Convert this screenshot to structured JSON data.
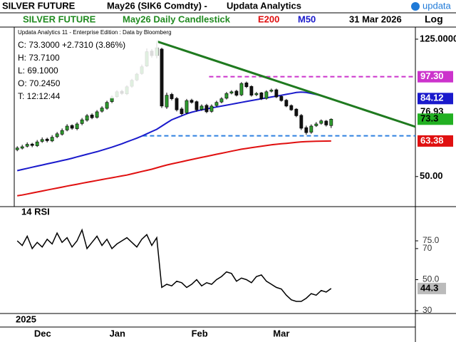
{
  "header": {
    "instrument": "SILVER FUTURE",
    "contract": "May26 (SIK6 Comdty) -",
    "vendor": "Updata Analytics",
    "logo": "updata"
  },
  "chart_data": {
    "type": "candlestick",
    "title": "SILVER FUTURE",
    "subtitle": "May26 Daily Candlestick",
    "date": "31 Mar 2026",
    "scale_label": "Log",
    "info": [
      "Updata Analytics 11 - Enterprise Edition : Data by Bloomberg",
      "C: 73.3000  +2.7310 (3.86%)",
      "H: 73.7100",
      "L: 69.1000",
      "O: 70.2450",
      "T: 12:12:44"
    ],
    "log_scale": true,
    "up_color": "#2e9a2e",
    "down_color": "#111111",
    "xlim": [
      -0.6,
      79.9
    ],
    "ylim": [
      41.3,
      135.5
    ],
    "yticks": [
      {
        "value": 125,
        "label": "125.0000"
      },
      {
        "value": 50,
        "label": "50.00"
      }
    ],
    "year_label": "2025",
    "xticks": [
      {
        "value": 5.1,
        "label": "Dec"
      },
      {
        "value": 20.1,
        "label": "Jan"
      },
      {
        "value": 36.6,
        "label": "Feb"
      },
      {
        "value": 53,
        "label": "Mar"
      }
    ],
    "candles": {
      "open": [
        59.8,
        60.4,
        61.2,
        62.1,
        61.4,
        63.2,
        64.2,
        63.4,
        65.2,
        66.3,
        68.2,
        70.3,
        68.8,
        71.2,
        72.8,
        75.4,
        74.2,
        77.3,
        78.8,
        82.4,
        85.2,
        88.3,
        86.8,
        91.3,
        95.2,
        99.4,
        104.5,
        115.5,
        112,
        117,
        79.5,
        86.5,
        84.2,
        78.5,
        76.5,
        83.2,
        82.4,
        78.2,
        80.4,
        77.2,
        80.3,
        82.2,
        84.3,
        87.2,
        88.4,
        86.2,
        93.4,
        91.2,
        86.3,
        87.4,
        84.2,
        88.3,
        89.2,
        85.4,
        83.2,
        80.3,
        78.4,
        75.2,
        69.3,
        67.2,
        70.2,
        71.3,
        72.4,
        70.245
      ],
      "high": [
        61.2,
        61.8,
        62.8,
        62.6,
        63.8,
        64.9,
        64.8,
        65.9,
        67.3,
        68.9,
        70.9,
        70.8,
        71.8,
        73.9,
        75.9,
        76.2,
        77.9,
        79.9,
        82.9,
        85.9,
        88.9,
        89.2,
        91.9,
        95.9,
        99.9,
        105.5,
        117.5,
        117,
        122,
        118,
        87.5,
        87.4,
        85,
        79.4,
        83.9,
        84,
        83,
        80.9,
        81.2,
        80.9,
        82.9,
        84.9,
        87.9,
        88.9,
        89.2,
        93.9,
        94.2,
        91.9,
        87.9,
        87.9,
        88.9,
        89.9,
        89.9,
        85.9,
        83.9,
        80.9,
        78.9,
        75.9,
        70.2,
        70.8,
        71.9,
        73.2,
        72.9,
        73.71
      ],
      "low": [
        59.2,
        59.9,
        60.7,
        60.8,
        60.9,
        62.6,
        62.8,
        62.9,
        64.6,
        65.7,
        67.6,
        68.3,
        68.1,
        70.4,
        72.1,
        73.3,
        73.6,
        76.6,
        78.1,
        81.6,
        84.5,
        86.2,
        86.1,
        90.4,
        94.4,
        98.6,
        103.8,
        110.5,
        110,
        79,
        78.5,
        83.1,
        77.2,
        75.1,
        75.8,
        81.3,
        77.1,
        77.5,
        76.3,
        76.5,
        79.6,
        81.5,
        83.6,
        86.5,
        85.3,
        85.5,
        90.2,
        85.2,
        85.5,
        83.3,
        83.5,
        87.6,
        84.4,
        82.4,
        79.4,
        77.5,
        74.3,
        68.2,
        66.1,
        66.5,
        69.6,
        70.7,
        69.8,
        69.1
      ],
      "close": [
        60.5,
        61,
        62,
        61.5,
        63,
        64,
        63.5,
        65,
        66.5,
        68,
        70,
        69,
        71,
        73,
        75,
        74,
        77,
        79,
        82,
        85,
        88,
        87,
        91,
        95,
        99,
        104,
        115,
        112,
        118,
        80,
        86,
        84,
        78,
        76,
        83,
        82,
        78,
        80,
        77,
        80,
        82,
        84,
        87,
        88,
        86,
        93,
        91,
        86,
        87,
        84,
        88,
        89,
        85,
        83,
        80,
        78,
        75,
        69,
        67,
        70,
        71,
        72.5,
        70.5,
        73.3
      ]
    },
    "series": [
      {
        "name": "E200",
        "color": "#e01010",
        "values": [
          44,
          44.2,
          44.5,
          44.8,
          45.1,
          45.4,
          45.7,
          46,
          46.3,
          46.6,
          46.9,
          47.2,
          47.5,
          47.8,
          48.1,
          48.4,
          48.7,
          49,
          49.3,
          49.6,
          49.9,
          50.2,
          50.5,
          50.9,
          51.3,
          51.7,
          52.1,
          52.5,
          53,
          53.5,
          54,
          54.4,
          54.8,
          55.2,
          55.6,
          56,
          56.4,
          56.8,
          57.2,
          57.6,
          58,
          58.4,
          58.8,
          59.2,
          59.6,
          60,
          60.3,
          60.6,
          60.9,
          61.2,
          61.5,
          61.8,
          62,
          62.2,
          62.4,
          62.6,
          62.8,
          63,
          63.1,
          63.2,
          63.25,
          63.3,
          63.35,
          63.38
        ]
      },
      {
        "name": "M50",
        "color": "#1a1acc",
        "values": [
          52,
          52.4,
          52.8,
          53.2,
          53.6,
          54,
          54.4,
          54.8,
          55.2,
          55.6,
          56,
          56.5,
          57,
          57.5,
          58,
          58.5,
          59,
          59.6,
          60.2,
          60.8,
          61.5,
          62.2,
          63,
          63.8,
          64.6,
          65.5,
          66.5,
          67.5,
          68.5,
          70,
          71.5,
          73,
          74,
          75,
          76,
          76.8,
          77.4,
          78,
          78.5,
          79,
          79.5,
          80,
          80.5,
          81,
          81.5,
          82,
          82.5,
          83,
          83.5,
          84,
          84.5,
          85,
          85.5,
          86,
          86.5,
          87,
          87.6,
          87.8,
          87.6,
          87,
          86.4,
          85.7,
          84.9,
          84.12
        ]
      }
    ],
    "trendline": {
      "color": "#1f7a1f",
      "x": [
        28,
        79.9
      ],
      "values": [
        123.2,
        69.7
      ],
      "label": 76.93
    },
    "hlines": [
      {
        "value": 97.3,
        "label": "97.30",
        "color": "#cc33cc",
        "from": 38.5
      },
      {
        "value": 65.6,
        "color": "#2f80e0",
        "from": 25.2
      }
    ],
    "rsi": {
      "title": "14 RSI",
      "color": "#000000",
      "ylim": [
        28.2,
        96.1
      ],
      "yticks": [
        {
          "value": 75,
          "label": "75.0"
        },
        70,
        {
          "value": 50,
          "label": "50.0"
        },
        30
      ],
      "values": [
        75,
        72,
        78,
        70,
        74,
        71,
        76,
        73,
        80,
        74,
        77,
        71,
        75,
        82,
        70,
        74,
        78,
        72,
        76,
        70,
        73,
        75,
        77,
        74,
        71,
        76,
        79,
        72,
        77,
        45,
        47,
        46,
        49,
        48,
        45,
        47,
        50,
        46,
        48,
        47,
        50,
        52,
        55,
        54,
        49,
        51,
        50,
        48,
        52,
        53,
        49,
        47,
        45,
        44,
        40,
        37,
        36,
        36,
        38,
        41,
        40,
        43,
        42,
        44.3
      ]
    }
  }
}
